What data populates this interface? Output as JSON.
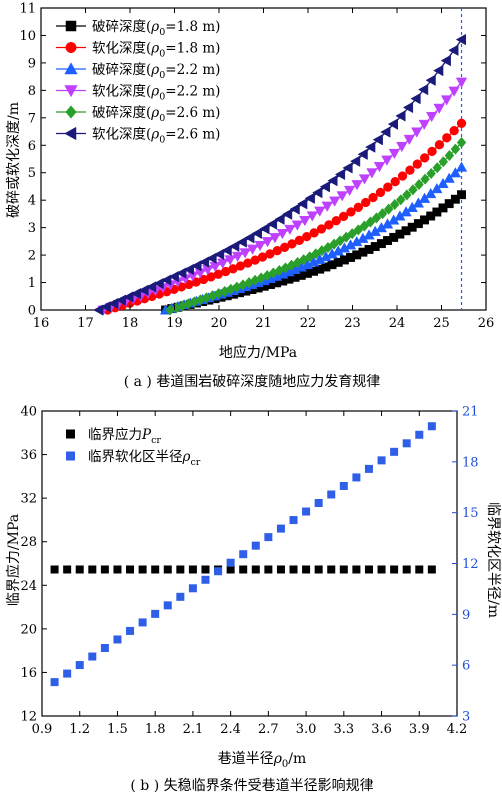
{
  "chart_data": [
    {
      "type": "line",
      "caption": "( a ) 巷道围岩破碎深度随地应力发育规律",
      "xlabel": "地应力/MPa",
      "ylabel": "破碎或软化深度/m",
      "xlim": [
        16,
        26
      ],
      "ylim": [
        0,
        11
      ],
      "xticks": [
        16,
        17,
        18,
        19,
        20,
        21,
        22,
        23,
        24,
        25,
        26
      ],
      "yticks": [
        0,
        1,
        2,
        3,
        4,
        5,
        6,
        7,
        8,
        9,
        10,
        11
      ],
      "vline_x": 25.45,
      "legend_position": "top-left",
      "series": [
        {
          "name": "破碎深度(ρ0=1.8 m)",
          "label_pre": "破碎深度(",
          "label_sym": "ρ",
          "label_sub": "0",
          "label_post": "=1.8 m)",
          "marker": "square",
          "color": "#000000",
          "x_start": 18.8,
          "x_end": 25.45,
          "y_end": 4.2
        },
        {
          "name": "软化深度(ρ0=1.8 m)",
          "label_pre": "软化深度(",
          "label_sym": "ρ",
          "label_sub": "0",
          "label_post": "=1.8 m)",
          "marker": "circle",
          "color": "#ff0000",
          "x_start": 17.5,
          "x_end": 25.45,
          "y_end": 6.8
        },
        {
          "name": "破碎深度(ρ0=2.2 m)",
          "label_pre": "破碎深度(",
          "label_sym": "ρ",
          "label_sub": "0",
          "label_post": "=2.2 m)",
          "marker": "triangle-up",
          "color": "#1f5fff",
          "x_start": 18.8,
          "x_end": 25.45,
          "y_end": 5.2
        },
        {
          "name": "软化深度(ρ0=2.2 m)",
          "label_pre": "软化深度(",
          "label_sym": "ρ",
          "label_sub": "0",
          "label_post": "=2.2 m)",
          "marker": "triangle-down",
          "color": "#bf40ff",
          "x_start": 17.4,
          "x_end": 25.45,
          "y_end": 8.3
        },
        {
          "name": "破碎深度(ρ0=2.6 m)",
          "label_pre": "破碎深度(",
          "label_sym": "ρ",
          "label_sub": "0",
          "label_post": "=2.6 m)",
          "marker": "diamond",
          "color": "#2aa02a",
          "x_start": 18.9,
          "x_end": 25.45,
          "y_end": 6.1
        },
        {
          "name": "软化深度(ρ0=2.6 m)",
          "label_pre": "软化深度(",
          "label_sym": "ρ",
          "label_sub": "0",
          "label_post": "=2.6 m)",
          "marker": "triangle-left",
          "color": "#1a1a7a",
          "x_start": 17.3,
          "x_end": 25.45,
          "y_end": 9.85
        }
      ]
    },
    {
      "type": "scatter",
      "caption": "( b ) 失稳临界条件受巷道半径影响规律",
      "xlabel_pre": "巷道半径",
      "xlabel_sym": "ρ",
      "xlabel_sub": "0",
      "xlabel_post": "/m",
      "ylabel": "临界应力/MPa",
      "y2label": "临界软化区半径/m",
      "xlim": [
        0.9,
        4.2
      ],
      "ylim": [
        12,
        40
      ],
      "y2lim": [
        3,
        21
      ],
      "xticks": [
        0.9,
        1.2,
        1.5,
        1.8,
        2.1,
        2.4,
        2.7,
        3.0,
        3.3,
        3.6,
        3.9,
        4.2
      ],
      "xtick_labels": [
        "0.9",
        "1.2",
        "1.5",
        "1.8",
        "2.1",
        "2.4",
        "2.7",
        "3.0",
        "3.3",
        "3.6",
        "3.9",
        "4.2"
      ],
      "yticks": [
        12,
        16,
        20,
        24,
        28,
        32,
        36,
        40
      ],
      "y2ticks": [
        3,
        6,
        9,
        12,
        15,
        18,
        21
      ],
      "legend_position": "top-left",
      "x": [
        1.0,
        1.1,
        1.2,
        1.3,
        1.4,
        1.5,
        1.6,
        1.7,
        1.8,
        1.9,
        2.0,
        2.1,
        2.2,
        2.3,
        2.4,
        2.5,
        2.6,
        2.7,
        2.8,
        2.9,
        3.0,
        3.1,
        3.2,
        3.3,
        3.4,
        3.5,
        3.6,
        3.7,
        3.8,
        3.9,
        4.0
      ],
      "series": [
        {
          "name": "临界应力Pcr",
          "label_pre": "临界应力",
          "label_sym": "P",
          "label_sub": "cr",
          "axis": "left",
          "color": "#000000",
          "constant": 25.45
        },
        {
          "name": "临界软化区半径ρcr",
          "label_pre": "临界软化区半径",
          "label_sym": "ρ",
          "label_sub": "cr",
          "axis": "right",
          "color": "#2f5fe8",
          "y_start": 5.0,
          "y_end": 20.1
        }
      ]
    }
  ]
}
